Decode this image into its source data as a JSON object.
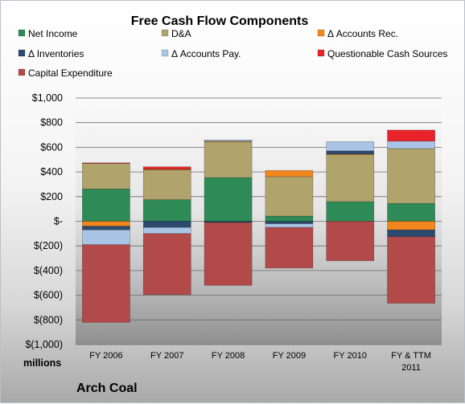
{
  "chart_data": {
    "type": "bar",
    "stacked": true,
    "title": "Free Cash Flow Components",
    "unit_label": "millions",
    "company": "Arch Coal",
    "categories": [
      "FY 2006",
      "FY 2007",
      "FY 2008",
      "FY 2009",
      "FY 2010",
      "FY & TTM 2011"
    ],
    "ylim": [
      -1000,
      1000
    ],
    "yticks": [
      1000,
      800,
      600,
      400,
      200,
      0,
      -200,
      -400,
      -600,
      -800,
      -1000
    ],
    "ytick_labels": [
      "$1,000",
      "$800",
      "$600",
      "$400",
      "$200",
      "$-",
      "$(200)",
      "$(400)",
      "$(600)",
      "$(800)",
      "$(1,000)"
    ],
    "grid": true,
    "legend_position": "top",
    "series": [
      {
        "name": "Net Income",
        "color": "#2e8b57",
        "values": [
          262,
          175,
          354,
          42,
          159,
          145
        ]
      },
      {
        "name": "D&A",
        "color": "#b0a36c",
        "values": [
          207,
          242,
          291,
          320,
          382,
          445
        ]
      },
      {
        "name": "Δ Accounts Rec.",
        "color": "#f0861c",
        "values": [
          -40,
          5,
          5,
          50,
          5,
          -70
        ]
      },
      {
        "name": "Δ Inventories",
        "color": "#2c4a6e",
        "values": [
          -30,
          -50,
          -10,
          -20,
          25,
          -55
        ]
      },
      {
        "name": "Δ Accounts Pay.",
        "color": "#a9c4e4",
        "values": [
          -120,
          -50,
          10,
          -30,
          75,
          60
        ]
      },
      {
        "name": "Questionable Cash Sources",
        "color": "#e8242a",
        "values": [
          5,
          20,
          0,
          0,
          0,
          90
        ]
      },
      {
        "name": "Capital Expenditure",
        "color": "#b24a4a",
        "values": [
          -630,
          -495,
          -510,
          -330,
          -320,
          -540
        ]
      }
    ]
  }
}
